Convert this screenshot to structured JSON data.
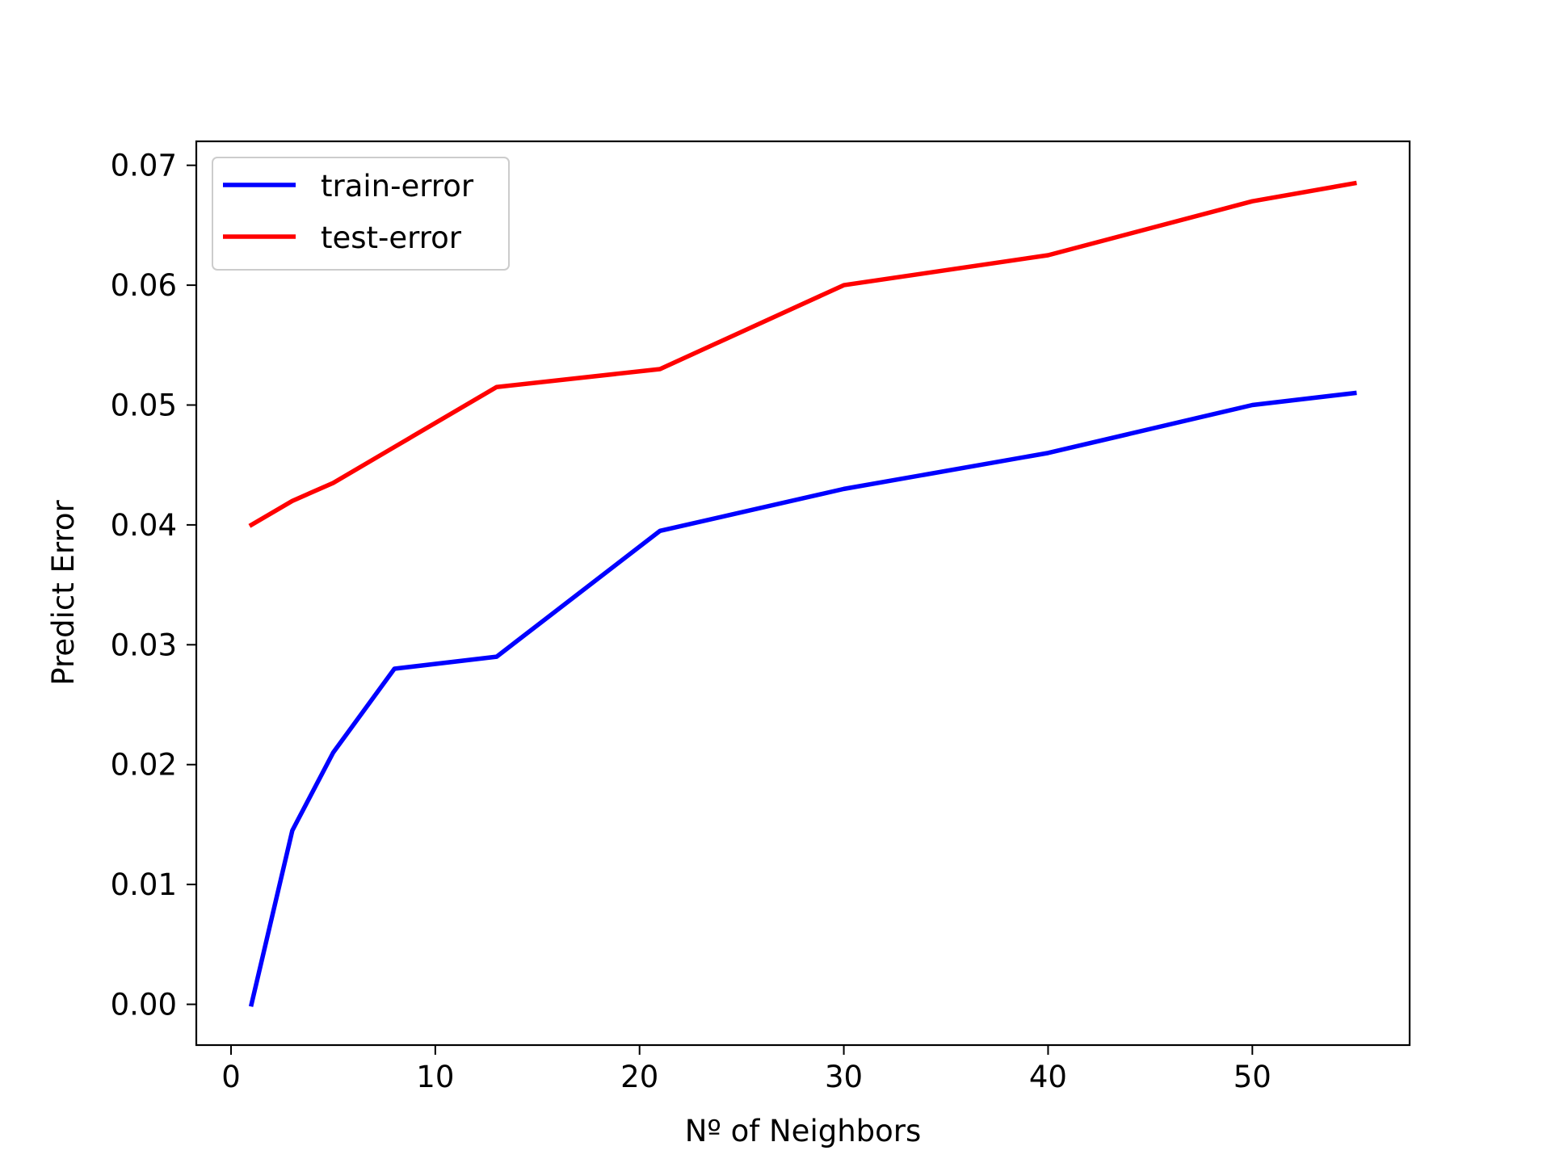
{
  "chart_data": {
    "type": "line",
    "title": "",
    "xlabel": "Nº of Neighbors",
    "ylabel": "Predict Error",
    "xlim": [
      -1.7,
      57.7
    ],
    "ylim": [
      -0.0034,
      0.072
    ],
    "xticks": [
      0,
      10,
      20,
      30,
      40,
      50
    ],
    "yticks": [
      0.0,
      0.01,
      0.02,
      0.03,
      0.04,
      0.05,
      0.06,
      0.07
    ],
    "xtick_labels": [
      "0",
      "10",
      "20",
      "30",
      "40",
      "50"
    ],
    "ytick_labels": [
      "0.00",
      "0.01",
      "0.02",
      "0.03",
      "0.04",
      "0.05",
      "0.06",
      "0.07"
    ],
    "grid": false,
    "legend_position": "top-left",
    "x": [
      1,
      3,
      5,
      8,
      13,
      21,
      30,
      40,
      50,
      55
    ],
    "series": [
      {
        "name": "train-error",
        "color": "#0000ff",
        "values": [
          0.0,
          0.0145,
          0.021,
          0.028,
          0.029,
          0.0395,
          0.043,
          0.046,
          0.05,
          0.051
        ]
      },
      {
        "name": "test-error",
        "color": "#ff0000",
        "values": [
          0.04,
          0.042,
          0.0435,
          0.0465,
          0.0515,
          0.053,
          0.06,
          0.0625,
          0.067,
          0.0685
        ]
      }
    ]
  }
}
